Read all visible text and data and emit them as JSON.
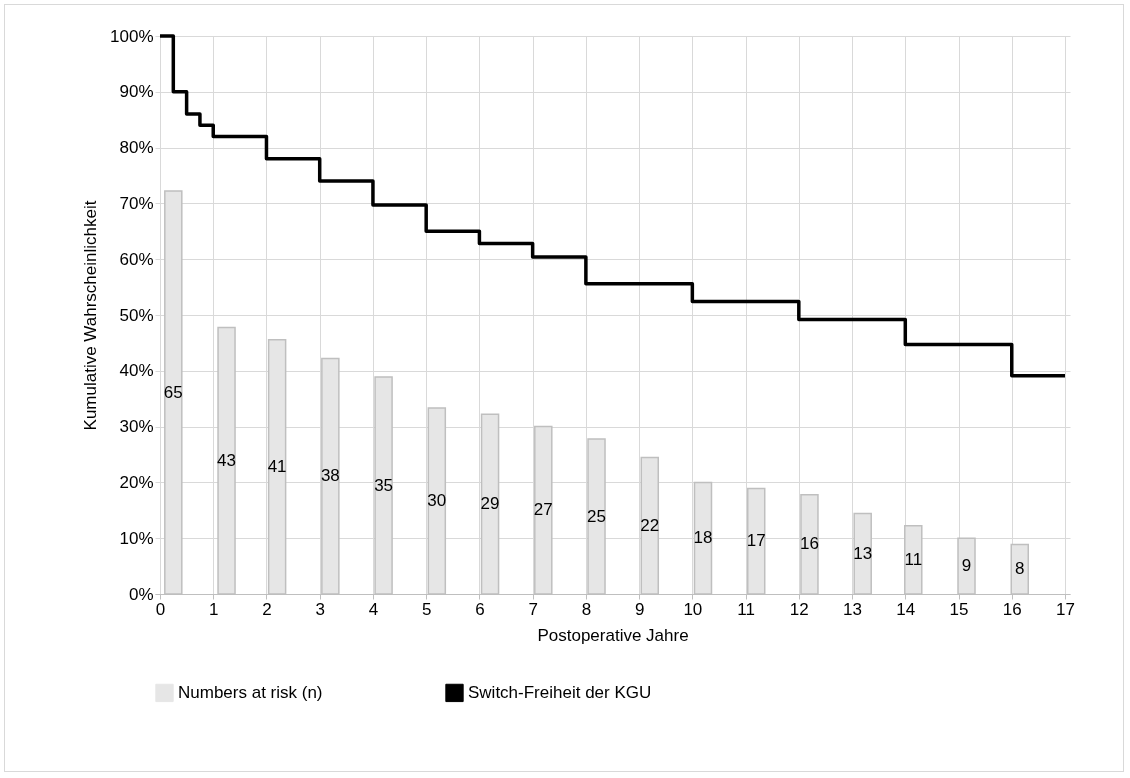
{
  "chart_data": {
    "type": "bar",
    "xlabel": "Postoperative Jahre",
    "ylabel": "Kumulative Wahrscheinlichkeit",
    "xlim": [
      0,
      17
    ],
    "xticks": [
      0,
      1,
      2,
      3,
      4,
      5,
      6,
      7,
      8,
      9,
      10,
      11,
      12,
      13,
      14,
      15,
      16,
      17
    ],
    "ylim": [
      0,
      100
    ],
    "yticks": [
      {
        "value": 0,
        "label": "0%"
      },
      {
        "value": 10,
        "label": "10%"
      },
      {
        "value": 20,
        "label": "20%"
      },
      {
        "value": 30,
        "label": "30%"
      },
      {
        "value": 40,
        "label": "40%"
      },
      {
        "value": 50,
        "label": "50%"
      },
      {
        "value": 60,
        "label": "60%"
      },
      {
        "value": 70,
        "label": "70%"
      },
      {
        "value": 80,
        "label": "80%"
      },
      {
        "value": 90,
        "label": "90%"
      },
      {
        "value": 100,
        "label": "100%"
      }
    ],
    "y2lim": [
      0,
      90
    ],
    "tick_labels": "xy",
    "grid": true,
    "legend": "bottom",
    "series": [
      {
        "name": "Numbers at risk (n)",
        "axis": "y2",
        "color": "#e6e6e6",
        "data_labels": true,
        "x": [
          0.25,
          1.25,
          2.2,
          3.2,
          4.2,
          5.2,
          6.2,
          7.2,
          8.2,
          9.2,
          10.2,
          11.2,
          12.2,
          13.2,
          14.15,
          15.15,
          16.15
        ],
        "values": [
          65,
          43,
          41,
          38,
          35,
          30,
          29,
          27,
          25,
          22,
          18,
          17,
          16,
          13,
          11,
          9,
          8
        ]
      },
      {
        "name": "Switch-Freiheit der KGU",
        "type": "step",
        "color": "#000000",
        "x": [
          0,
          0.25,
          0.5,
          0.75,
          1,
          2,
          3,
          4,
          5,
          6,
          7,
          8,
          10,
          12,
          14,
          16,
          17
        ],
        "values": [
          100,
          90,
          86,
          84,
          82,
          78,
          74,
          69.7,
          65,
          62.8,
          60.4,
          55.6,
          52.4,
          49.2,
          44.7,
          39.1,
          39.1
        ]
      }
    ]
  }
}
